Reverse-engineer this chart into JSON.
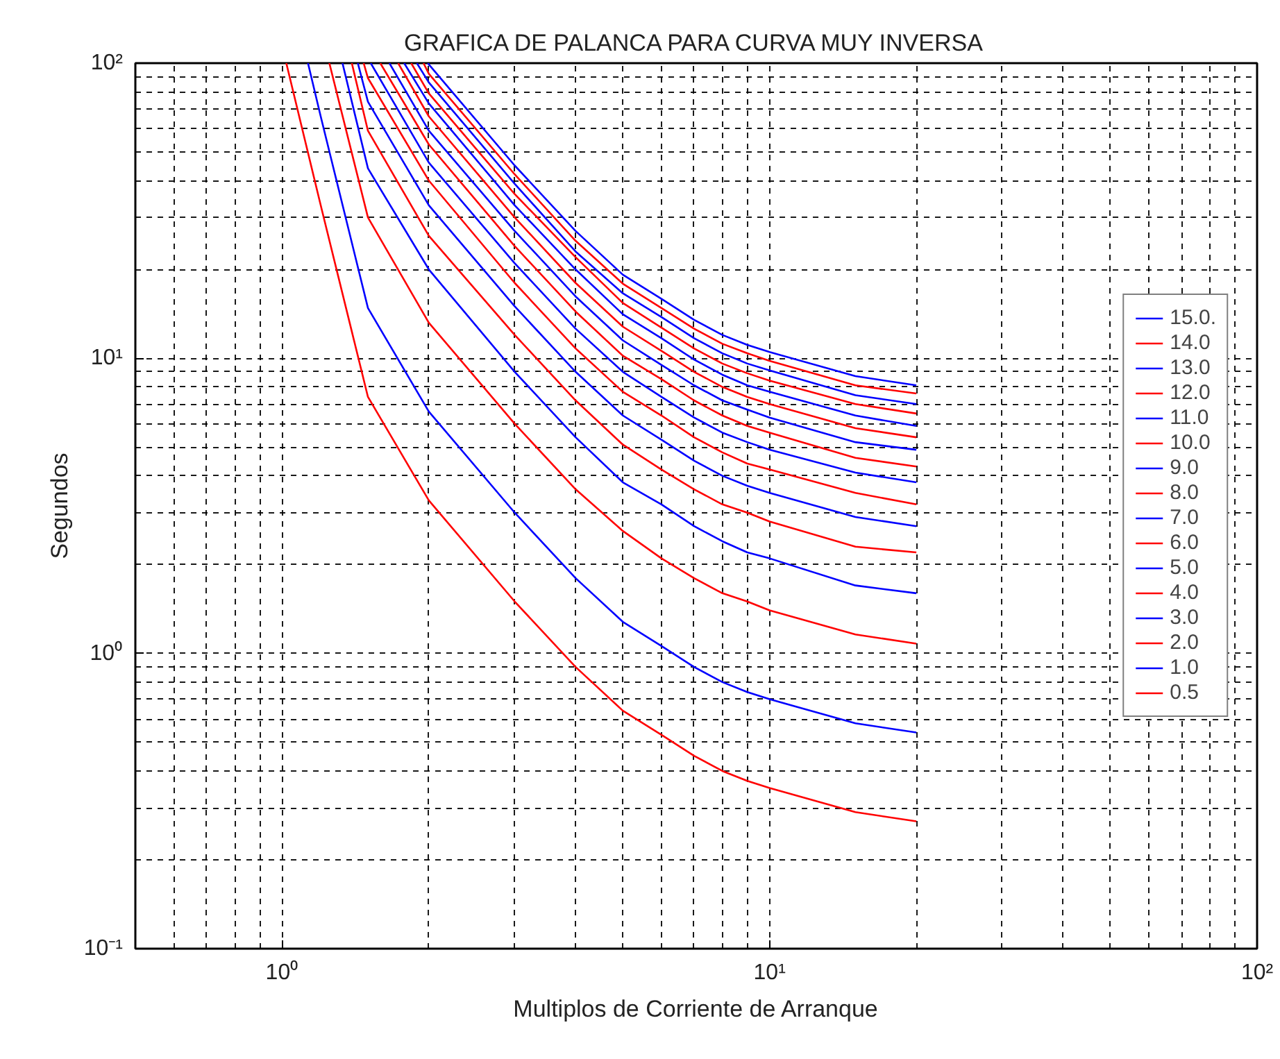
{
  "chart_data": {
    "type": "line",
    "title": "GRAFICA DE PALANCA PARA CURVA MUY INVERSA",
    "xlabel": "Multiplos de Corriente de Arranque",
    "ylabel": "Segundos",
    "log": "xy",
    "grid": true,
    "legend": "right",
    "line_style": "solid",
    "marker": "none",
    "xlim": [
      0.5,
      100
    ],
    "ylim": [
      0.1,
      100
    ],
    "xticks": [
      {
        "value": 1,
        "label": "10⁰"
      },
      {
        "value": 10,
        "label": "10¹"
      },
      {
        "value": 100,
        "label": "10²"
      }
    ],
    "yticks": [
      {
        "value": 0.1,
        "label": "10⁻¹"
      },
      {
        "value": 1,
        "label": "10⁰"
      },
      {
        "value": 10,
        "label": "10¹"
      },
      {
        "value": 100,
        "label": "10²"
      }
    ],
    "series": [
      {
        "name": "15.0.",
        "color": "#0000ff",
        "x": [
          1.99,
          2,
          3,
          4,
          5,
          6,
          7,
          8,
          9,
          10,
          15,
          20
        ],
        "values": [
          100,
          99,
          45,
          27,
          19.2,
          15.9,
          13.5,
          12,
          11.1,
          10.5,
          8.7,
          8.1
        ]
      },
      {
        "name": "14.0",
        "color": "#ff0000",
        "x": [
          1.95,
          2,
          3,
          4,
          5,
          6,
          7,
          8,
          9,
          10,
          15,
          20
        ],
        "values": [
          100,
          92,
          42,
          25,
          17.9,
          14.8,
          12.6,
          11.2,
          10.4,
          9.8,
          8.1,
          7.6
        ]
      },
      {
        "name": "13.0",
        "color": "#0000ff",
        "x": [
          1.89,
          2,
          3,
          4,
          5,
          6,
          7,
          8,
          9,
          10,
          15,
          20
        ],
        "values": [
          100,
          86,
          39,
          23,
          16.6,
          13.8,
          11.7,
          10.4,
          9.6,
          9.1,
          7.5,
          7.0
        ]
      },
      {
        "name": "12.0",
        "color": "#ff0000",
        "x": [
          1.84,
          2,
          3,
          4,
          5,
          6,
          7,
          8,
          9,
          10,
          15,
          20
        ],
        "values": [
          100,
          79,
          36,
          22,
          15.4,
          12.7,
          10.8,
          9.6,
          8.9,
          8.4,
          7.0,
          6.5
        ]
      },
      {
        "name": "11.0",
        "color": "#0000ff",
        "x": [
          1.78,
          2,
          3,
          4,
          5,
          6,
          7,
          8,
          9,
          10,
          15,
          20
        ],
        "values": [
          100,
          73,
          33,
          20,
          14.1,
          11.7,
          9.9,
          8.8,
          8.1,
          7.7,
          6.4,
          5.9
        ]
      },
      {
        "name": "10.0",
        "color": "#ff0000",
        "x": [
          1.73,
          2,
          3,
          4,
          5,
          6,
          7,
          8,
          9,
          10,
          15,
          20
        ],
        "values": [
          100,
          66,
          30,
          18,
          12.8,
          10.6,
          9.0,
          8.0,
          7.4,
          7.0,
          5.8,
          5.4
        ]
      },
      {
        "name": "9.0",
        "color": "#0000ff",
        "x": [
          1.66,
          2,
          3,
          4,
          5,
          6,
          7,
          8,
          9,
          10,
          15,
          20
        ],
        "values": [
          100,
          59,
          27,
          16.2,
          11.5,
          9.5,
          8.1,
          7.2,
          6.7,
          6.3,
          5.2,
          4.9
        ]
      },
      {
        "name": "8.0",
        "color": "#ff0000",
        "x": [
          1.59,
          2,
          3,
          4,
          5,
          6,
          7,
          8,
          9,
          10,
          15,
          20
        ],
        "values": [
          100,
          53,
          24,
          14.4,
          10.2,
          8.5,
          7.2,
          6.4,
          5.9,
          5.6,
          4.6,
          4.3
        ]
      },
      {
        "name": "7.0",
        "color": "#0000ff",
        "x": [
          1.52,
          2,
          3,
          4,
          5,
          6,
          7,
          8,
          9,
          10,
          15,
          20
        ],
        "values": [
          100,
          46,
          21,
          12.6,
          9.0,
          7.4,
          6.3,
          5.6,
          5.2,
          4.9,
          4.1,
          3.8
        ]
      },
      {
        "name": "6.0",
        "color": "#ff0000",
        "x": [
          1.47,
          1.5,
          2,
          3,
          4,
          5,
          6,
          7,
          8,
          9,
          10,
          15,
          20
        ],
        "values": [
          100,
          89,
          40,
          18,
          10.8,
          7.7,
          6.4,
          5.4,
          4.8,
          4.4,
          4.2,
          3.5,
          3.2
        ]
      },
      {
        "name": "5.0",
        "color": "#0000ff",
        "x": [
          1.43,
          1.5,
          2,
          3,
          4,
          5,
          6,
          7,
          8,
          9,
          10,
          15,
          20
        ],
        "values": [
          100,
          74,
          33,
          15,
          9.0,
          6.4,
          5.3,
          4.5,
          4.0,
          3.7,
          3.5,
          2.9,
          2.7
        ]
      },
      {
        "name": "4.0",
        "color": "#ff0000",
        "x": [
          1.39,
          1.5,
          2,
          3,
          4,
          5,
          6,
          7,
          8,
          9,
          10,
          15,
          20
        ],
        "values": [
          100,
          59,
          26,
          12,
          7.2,
          5.1,
          4.2,
          3.6,
          3.2,
          3.0,
          2.8,
          2.3,
          2.2
        ]
      },
      {
        "name": "3.0",
        "color": "#0000ff",
        "x": [
          1.33,
          1.5,
          2,
          3,
          4,
          5,
          6,
          7,
          8,
          9,
          10,
          15,
          20
        ],
        "values": [
          100,
          44,
          20,
          9.0,
          5.4,
          3.8,
          3.2,
          2.7,
          2.4,
          2.2,
          2.1,
          1.7,
          1.6
        ]
      },
      {
        "name": "2.0",
        "color": "#ff0000",
        "x": [
          1.25,
          1.5,
          2,
          3,
          4,
          5,
          6,
          7,
          8,
          9,
          10,
          15,
          20
        ],
        "values": [
          100,
          30,
          13.2,
          6.0,
          3.6,
          2.6,
          2.1,
          1.8,
          1.6,
          1.5,
          1.4,
          1.16,
          1.08
        ]
      },
      {
        "name": "1.0",
        "color": "#0000ff",
        "x": [
          1.13,
          1.2,
          1.5,
          2,
          3,
          4,
          5,
          6,
          7,
          8,
          9,
          10,
          15,
          20
        ],
        "values": [
          100,
          66,
          14.8,
          6.6,
          3.0,
          1.8,
          1.28,
          1.06,
          0.9,
          0.8,
          0.74,
          0.7,
          0.58,
          0.54
        ]
      },
      {
        "name": "0.5",
        "color": "#ff0000",
        "x": [
          1.02,
          1.2,
          1.5,
          2,
          3,
          4,
          5,
          6,
          7,
          8,
          9,
          10,
          15,
          20
        ],
        "values": [
          100,
          33,
          7.4,
          3.3,
          1.5,
          0.9,
          0.64,
          0.53,
          0.45,
          0.4,
          0.37,
          0.35,
          0.29,
          0.27
        ]
      }
    ]
  }
}
